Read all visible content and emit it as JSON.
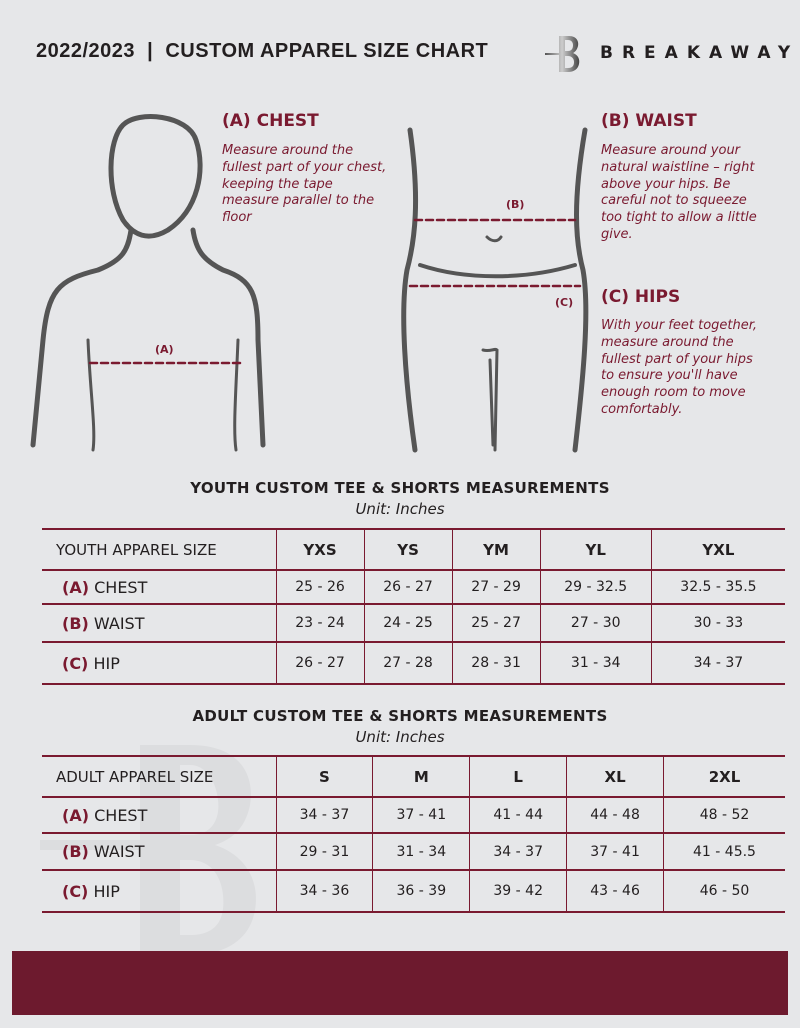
{
  "header": {
    "title": "2022/2023  |  CUSTOM APPAREL SIZE CHART",
    "brand": "BREAKAWAY",
    "logo_letter": "B"
  },
  "chest": {
    "heading": "(A) CHEST",
    "description": "Measure around the fullest part of your chest, keeping the tape measure parallel to the floor",
    "marker": "(A)"
  },
  "waist": {
    "heading": "(B) WAIST",
    "description": "Measure around your natural waistline – right above your hips. Be careful not to squeeze too tight to allow a little give.",
    "marker": "(B)"
  },
  "hips": {
    "heading": "(C) HIPS",
    "description": "With your feet together, measure around the fullest part of your hips to ensure you'll have enough room to move comfortably.",
    "marker": "(C)"
  },
  "accent_color": "#7a1a30",
  "youth": {
    "title": "YOUTH CUSTOM TEE & SHORTS MEASUREMENTS",
    "unit": "Unit: Inches",
    "size_label": "YOUTH APPAREL SIZE",
    "sizes": [
      "YXS",
      "YS",
      "YM",
      "YL",
      "YXL"
    ],
    "rows": [
      {
        "letter": "(A)",
        "name": "CHEST",
        "values": [
          "25 - 26",
          "26 - 27",
          "27 - 29",
          "29 - 32.5",
          "32.5 - 35.5"
        ]
      },
      {
        "letter": "(B)",
        "name": "WAIST",
        "values": [
          "23 - 24",
          "24 - 25",
          "25 - 27",
          "27 - 30",
          "30 - 33"
        ]
      },
      {
        "letter": "(C)",
        "name": "HIP",
        "values": [
          "26 - 27",
          "27 - 28",
          "28 - 31",
          "31 - 34",
          "34 - 37"
        ]
      }
    ]
  },
  "adult": {
    "title": "ADULT CUSTOM TEE & SHORTS MEASUREMENTS",
    "unit": "Unit: Inches",
    "size_label": "ADULT APPAREL SIZE",
    "sizes": [
      "S",
      "M",
      "L",
      "XL",
      "2XL"
    ],
    "rows": [
      {
        "letter": "(A)",
        "name": "CHEST",
        "values": [
          "34 - 37",
          "37 - 41",
          "41 - 44",
          "44 - 48",
          "48 - 52"
        ]
      },
      {
        "letter": "(B)",
        "name": "WAIST",
        "values": [
          "29 - 31",
          "31 - 34",
          "34 - 37",
          "37 - 41",
          "41 - 45.5"
        ]
      },
      {
        "letter": "(C)",
        "name": "HIP",
        "values": [
          "34 - 36",
          "36 - 39",
          "39 - 42",
          "43 - 46",
          "46 - 50"
        ]
      }
    ]
  }
}
